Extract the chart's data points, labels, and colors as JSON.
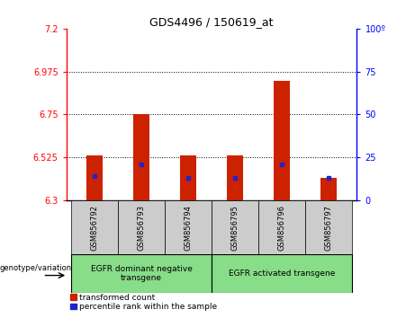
{
  "title": "GDS4496 / 150619_at",
  "samples": [
    "GSM856792",
    "GSM856793",
    "GSM856794",
    "GSM856795",
    "GSM856796",
    "GSM856797"
  ],
  "red_tops": [
    6.535,
    6.75,
    6.535,
    6.535,
    6.925,
    6.42
  ],
  "blue_tops": [
    6.425,
    6.49,
    6.42,
    6.42,
    6.49,
    6.42
  ],
  "ymin": 6.3,
  "ymax": 7.2,
  "y_ticks_left": [
    6.3,
    6.525,
    6.75,
    6.975,
    7.2
  ],
  "y_ticks_left_labels": [
    "6.3",
    "6.525",
    "6.75",
    "6.975",
    "7.2"
  ],
  "y_ticks_right": [
    0,
    25,
    50,
    75,
    100
  ],
  "y_ticks_right_labels": [
    "0",
    "25",
    "50",
    "75",
    "100º"
  ],
  "dotted_lines": [
    6.525,
    6.75,
    6.975
  ],
  "bar_bottom": 6.3,
  "bar_color": "#cc2200",
  "blue_color": "#2222cc",
  "group1_label": "EGFR dominant negative\ntransgene",
  "group2_label": "EGFR activated transgene",
  "legend_red": "transformed count",
  "legend_blue": "percentile rank within the sample",
  "genotype_label": "genotype/variation",
  "group_bg": "#88dd88",
  "sample_bg": "#cccccc",
  "bar_width": 0.35
}
